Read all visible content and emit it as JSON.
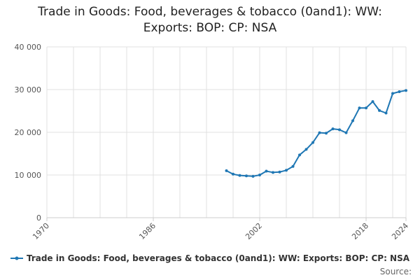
{
  "title": {
    "line1": "Trade in Goods: Food, beverages & tobacco (0and1): WW:",
    "line2": "Exports: BOP: CP: NSA"
  },
  "source_label": "Source:",
  "colors": {
    "series": "#1f77b4",
    "grid": "#e0e0e0",
    "axis": "#cccccc"
  },
  "chart_data": {
    "type": "line",
    "xlim": [
      1970,
      2024
    ],
    "ylim": [
      0,
      40000
    ],
    "x_ticks": [
      1970,
      1986,
      2002,
      2018,
      2024
    ],
    "x_tick_labels": [
      "1970",
      "1986",
      "2002",
      "2018",
      "2024"
    ],
    "y_ticks": [
      0,
      10000,
      20000,
      30000,
      40000
    ],
    "y_tick_labels": [
      "0",
      "10 000",
      "20 000",
      "30 000",
      "40 000"
    ],
    "grid": true,
    "legend_position": "bottom",
    "series": [
      {
        "name": "Trade in Goods: Food, beverages & tobacco (0and1): WW: Exports: BOP: CP: NSA",
        "x": [
          1997,
          1998,
          1999,
          2000,
          2001,
          2002,
          2003,
          2004,
          2005,
          2006,
          2007,
          2008,
          2009,
          2010,
          2011,
          2012,
          2013,
          2014,
          2015,
          2016,
          2017,
          2018,
          2019,
          2020,
          2021,
          2022,
          2023,
          2024
        ],
        "y": [
          11000,
          10200,
          9900,
          9800,
          9700,
          10000,
          10900,
          10600,
          10700,
          11100,
          12000,
          14700,
          16000,
          17600,
          19900,
          19800,
          20800,
          20600,
          19900,
          22700,
          25700,
          25700,
          27200,
          25100,
          24500,
          29100,
          29500,
          29800
        ]
      }
    ]
  }
}
